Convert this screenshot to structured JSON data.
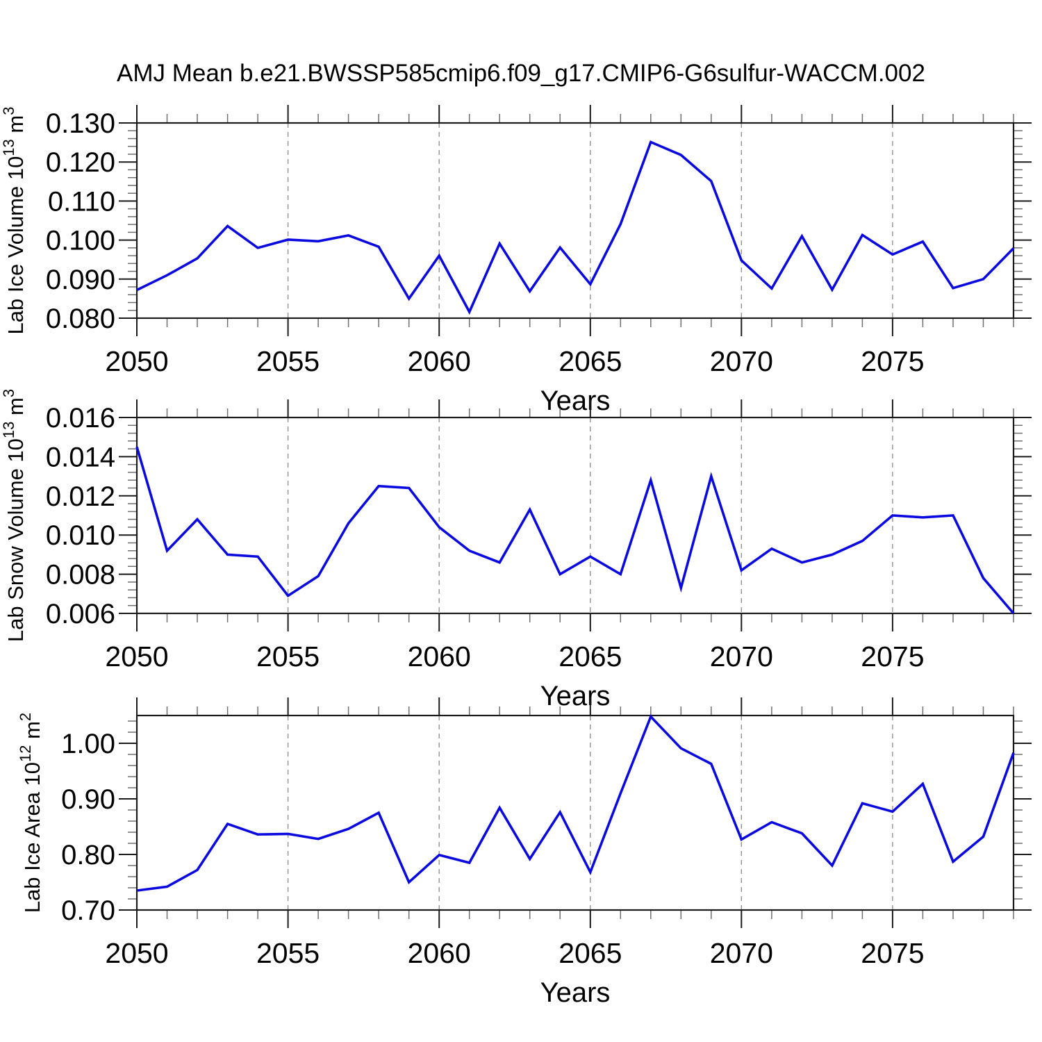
{
  "title": "AMJ Mean b.e21.BWSSP585cmip6.f09_g17.CMIP6-G6sulfur-WACCM.002",
  "colors": {
    "line": "#0a0ae0",
    "frame": "#1a1a1a",
    "minor_tick": "#6e6e6e",
    "grid": "#8a8a8a",
    "text": "#000000",
    "background": "#ffffff"
  },
  "years": [
    2050,
    2051,
    2052,
    2053,
    2054,
    2055,
    2056,
    2057,
    2058,
    2059,
    2060,
    2061,
    2062,
    2063,
    2064,
    2065,
    2066,
    2067,
    2068,
    2069,
    2070,
    2071,
    2072,
    2073,
    2074,
    2075,
    2076,
    2077,
    2078,
    2079
  ],
  "chart_data": [
    {
      "type": "line",
      "name": "lab-ice-volume",
      "ylabel_text": "Lab Ice Volume 10^13 m^3",
      "ylabel_parts": [
        {
          "t": "Lab Ice Volume 10"
        },
        {
          "t": "13",
          "sup": true
        },
        {
          "t": " m"
        },
        {
          "t": "3",
          "sup": true
        }
      ],
      "xlabel": "Years",
      "xlim": [
        2050,
        2079
      ],
      "ylim": [
        0.08,
        0.13
      ],
      "ytick_values": [
        0.08,
        0.09,
        0.1,
        0.11,
        0.12,
        0.13
      ],
      "ytick_labels": [
        "0.080",
        "0.090",
        "0.100",
        "0.110",
        "0.120",
        "0.130"
      ],
      "yminor_step": 0.002,
      "xtick_values": [
        2050,
        2055,
        2060,
        2065,
        2070,
        2075
      ],
      "xtick_labels": [
        "2050",
        "2055",
        "2060",
        "2065",
        "2070",
        "2075"
      ],
      "xminor_step": 1,
      "grid_x": [
        2055,
        2060,
        2065,
        2070,
        2075
      ],
      "values": [
        0.0872,
        0.091,
        0.0953,
        0.1036,
        0.098,
        0.1001,
        0.0997,
        0.1012,
        0.0983,
        0.085,
        0.096,
        0.0816,
        0.0991,
        0.0869,
        0.0981,
        0.0887,
        0.1041,
        0.1251,
        0.1218,
        0.1151,
        0.0948,
        0.0876,
        0.101,
        0.0873,
        0.1013,
        0.0963,
        0.0996,
        0.0877,
        0.09,
        0.0979
      ]
    },
    {
      "type": "line",
      "name": "lab-snow-volume",
      "ylabel_text": "Lab Snow Volume 10^13 m^3",
      "ylabel_parts": [
        {
          "t": "Lab Snow Volume 10"
        },
        {
          "t": "13",
          "sup": true
        },
        {
          "t": " m"
        },
        {
          "t": "3",
          "sup": true
        }
      ],
      "xlabel": "Years",
      "xlim": [
        2050,
        2079
      ],
      "ylim": [
        0.006,
        0.016
      ],
      "ytick_values": [
        0.006,
        0.008,
        0.01,
        0.012,
        0.014,
        0.016
      ],
      "ytick_labels": [
        "0.006",
        "0.008",
        "0.010",
        "0.012",
        "0.014",
        "0.016"
      ],
      "yminor_step": 0.0004,
      "xtick_values": [
        2050,
        2055,
        2060,
        2065,
        2070,
        2075
      ],
      "xtick_labels": [
        "2050",
        "2055",
        "2060",
        "2065",
        "2070",
        "2075"
      ],
      "xminor_step": 1,
      "grid_x": [
        2055,
        2060,
        2065,
        2070,
        2075
      ],
      "values": [
        0.0145,
        0.0092,
        0.0108,
        0.009,
        0.0089,
        0.0069,
        0.0079,
        0.0106,
        0.0125,
        0.0124,
        0.0104,
        0.0092,
        0.0086,
        0.0113,
        0.008,
        0.0089,
        0.008,
        0.0128,
        0.0073,
        0.013,
        0.0082,
        0.0093,
        0.0086,
        0.009,
        0.0097,
        0.011,
        0.0109,
        0.011,
        0.0078,
        0.006
      ]
    },
    {
      "type": "line",
      "name": "lab-ice-area",
      "ylabel_text": "Lab Ice Area 10^12 m^2",
      "ylabel_parts": [
        {
          "t": "Lab Ice Area 10"
        },
        {
          "t": "12",
          "sup": true
        },
        {
          "t": " m"
        },
        {
          "t": "2",
          "sup": true
        }
      ],
      "xlabel": "Years",
      "xlim": [
        2050,
        2079
      ],
      "ylim": [
        0.7,
        1.05
      ],
      "ytick_values": [
        0.7,
        0.8,
        0.9,
        1.0
      ],
      "ytick_labels": [
        "0.70",
        "0.80",
        "0.90",
        "1.00"
      ],
      "yminor_step": 0.02,
      "xtick_values": [
        2050,
        2055,
        2060,
        2065,
        2070,
        2075
      ],
      "xtick_labels": [
        "2050",
        "2055",
        "2060",
        "2065",
        "2070",
        "2075"
      ],
      "xminor_step": 1,
      "grid_x": [
        2055,
        2060,
        2065,
        2070,
        2075
      ],
      "values": [
        0.735,
        0.742,
        0.772,
        0.855,
        0.836,
        0.837,
        0.828,
        0.846,
        0.875,
        0.75,
        0.799,
        0.785,
        0.884,
        0.792,
        0.876,
        0.768,
        0.91,
        1.048,
        0.991,
        0.963,
        0.827,
        0.858,
        0.838,
        0.78,
        0.892,
        0.877,
        0.927,
        0.787,
        0.832,
        0.983
      ]
    }
  ]
}
